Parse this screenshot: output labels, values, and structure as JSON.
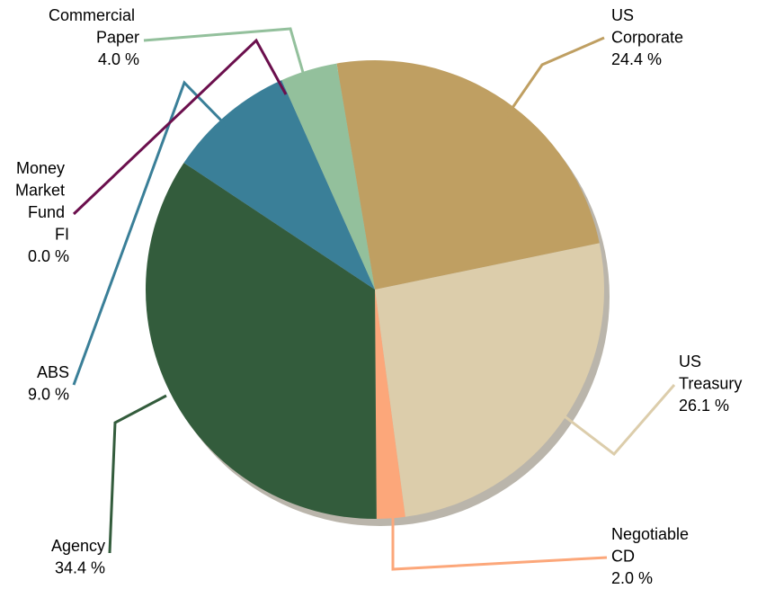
{
  "chart_data": {
    "type": "pie",
    "categories": [
      "US Corporate",
      "US Treasury",
      "Negotiable CD",
      "Agency",
      "ABS",
      "Money Market Fund FI",
      "Commercial Paper"
    ],
    "values": [
      24.4,
      26.1,
      2.0,
      34.4,
      9.0,
      0.0,
      4.0
    ],
    "value_labels": [
      "24.4 %",
      "26.1 %",
      "2.0 %",
      "34.4 %",
      "9.0 %",
      "0.0 %",
      "4.0 %"
    ],
    "colors": [
      "#bf9f62",
      "#dccdab",
      "#fca77a",
      "#335c3c",
      "#3a7f98",
      "#6b0f4d",
      "#93c09c"
    ]
  }
}
